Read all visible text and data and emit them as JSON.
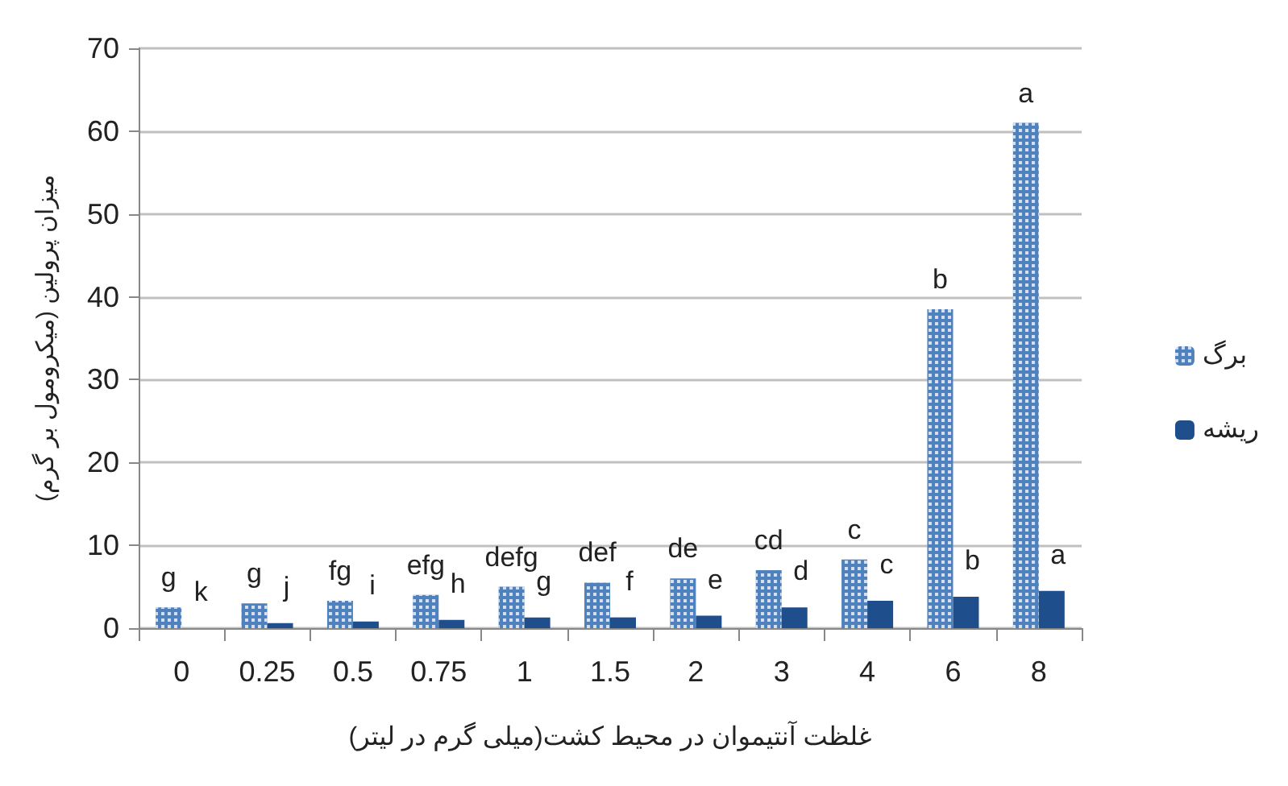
{
  "chart_data": {
    "type": "bar",
    "xlabel": "غلظت آنتیموان در محیط کشت(میلی گرم در لیتر)",
    "ylabel": "میزان پرولین (میکرومول بر گرم)",
    "categories": [
      "0",
      "0.25",
      "0.5",
      "0.75",
      "1",
      "1.5",
      "2",
      "3",
      "4",
      "6",
      "8"
    ],
    "series": [
      {
        "name": "برگ",
        "color": "#4f81bd",
        "values": [
          2.5,
          3,
          3.3,
          4,
          5,
          5.5,
          6,
          7,
          8.3,
          38.5,
          61
        ],
        "value_labels": [
          "g",
          "g",
          "fg",
          "efg",
          "defg",
          "def",
          "de",
          "cd",
          "c",
          "b",
          "a"
        ]
      },
      {
        "name": "ریشه",
        "color": "#1f4e8c",
        "values": [
          0,
          0.6,
          0.8,
          1,
          1.3,
          1.3,
          1.5,
          2.5,
          3.3,
          3.8,
          4.5
        ],
        "value_labels": [
          "k",
          "j",
          "i",
          "h",
          "g",
          "f",
          "e",
          "d",
          "c",
          "b",
          "a"
        ]
      }
    ],
    "ylim": [
      0,
      70
    ],
    "yticks": [
      0,
      10,
      20,
      30,
      40,
      50,
      60,
      70
    ],
    "grid": "y",
    "legend": "right"
  }
}
